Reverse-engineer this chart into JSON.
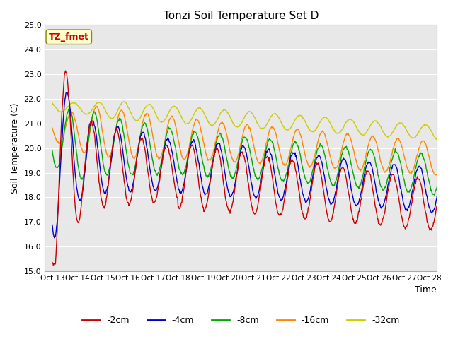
{
  "title": "Tonzi Soil Temperature Set D",
  "xlabel": "Time",
  "ylabel": "Soil Temperature (C)",
  "ylim": [
    15.0,
    25.0
  ],
  "yticks": [
    15.0,
    16.0,
    17.0,
    18.0,
    19.0,
    20.0,
    21.0,
    22.0,
    23.0,
    24.0,
    25.0
  ],
  "xtick_labels": [
    "Oct 13",
    "Oct 14",
    "Oct 15",
    "Oct 16",
    "Oct 17",
    "Oct 18",
    "Oct 19",
    "Oct 20",
    "Oct 21",
    "Oct 22",
    "Oct 23",
    "Oct 24",
    "Oct 25",
    "Oct 26",
    "Oct 27",
    "Oct 28"
  ],
  "line_colors": [
    "#cc0000",
    "#0000cc",
    "#00aa00",
    "#ff8800",
    "#cccc00"
  ],
  "line_labels": [
    "-2cm",
    "-4cm",
    "-8cm",
    "-16cm",
    "-32cm"
  ],
  "annotation_text": "TZ_fmet",
  "annotation_color": "#cc0000",
  "annotation_bg": "#ffffcc",
  "bg_color": "#e8e8e8"
}
